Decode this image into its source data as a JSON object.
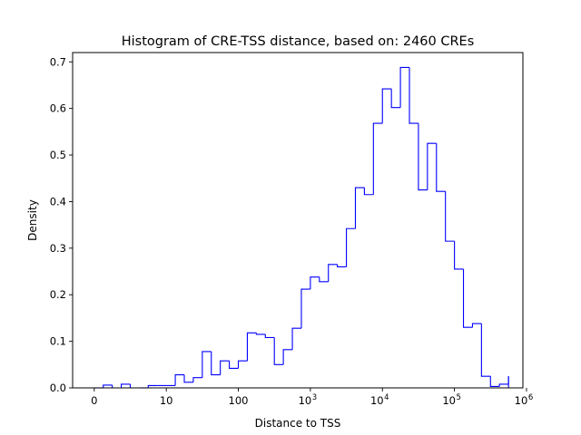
{
  "chart_data": {
    "type": "histogram",
    "title": "Histogram of CRE-TSS distance, based on: 2460 CREs",
    "xlabel": "Distance to TSS",
    "ylabel": "Density",
    "x_scale": "symlog",
    "xlim_decades": [
      -0.3,
      5.95
    ],
    "ylim": [
      0,
      0.72
    ],
    "grid": false,
    "color": "#0000ff",
    "x_ticks": [
      {
        "decade": 0,
        "label": "0",
        "sup": ""
      },
      {
        "decade": 1,
        "label": "10",
        "sup": ""
      },
      {
        "decade": 2,
        "label": "100",
        "sup": ""
      },
      {
        "decade": 3,
        "label": "10",
        "sup": "3"
      },
      {
        "decade": 4,
        "label": "10",
        "sup": "4"
      },
      {
        "decade": 5,
        "label": "10",
        "sup": "5"
      },
      {
        "decade": 6,
        "label": "10",
        "sup": "6"
      }
    ],
    "y_ticks": [
      {
        "value": 0.0,
        "label": "0.0"
      },
      {
        "value": 0.1,
        "label": "0.1"
      },
      {
        "value": 0.2,
        "label": "0.2"
      },
      {
        "value": 0.3,
        "label": "0.3"
      },
      {
        "value": 0.4,
        "label": "0.4"
      },
      {
        "value": 0.5,
        "label": "0.5"
      },
      {
        "value": 0.6,
        "label": "0.6"
      },
      {
        "value": 0.7,
        "label": "0.7"
      }
    ],
    "bin_edges_decades": [
      0,
      0.125,
      0.25,
      0.375,
      0.5,
      0.625,
      0.75,
      0.875,
      1,
      1.125,
      1.25,
      1.375,
      1.5,
      1.625,
      1.75,
      1.875,
      2,
      2.125,
      2.25,
      2.375,
      2.5,
      2.625,
      2.75,
      2.875,
      3,
      3.125,
      3.25,
      3.375,
      3.5,
      3.625,
      3.75,
      3.875,
      4,
      4.125,
      4.25,
      4.375,
      4.5,
      4.625,
      4.75,
      4.875,
      5,
      5.125,
      5.25,
      5.375,
      5.5,
      5.625,
      5.75
    ],
    "densities": [
      0,
      0.006,
      0,
      0.008,
      0,
      0,
      0.005,
      0.005,
      0.005,
      0.028,
      0.012,
      0.022,
      0.078,
      0.028,
      0.058,
      0.042,
      0.058,
      0.118,
      0.115,
      0.108,
      0.05,
      0.082,
      0.128,
      0.212,
      0.238,
      0.228,
      0.265,
      0.26,
      0.342,
      0.43,
      0.415,
      0.568,
      0.642,
      0.602,
      0.688,
      0.568,
      0.425,
      0.525,
      0.422,
      0.315,
      0.255,
      0.13,
      0.138,
      0.025,
      0.003,
      0.008,
      0.025
    ]
  }
}
